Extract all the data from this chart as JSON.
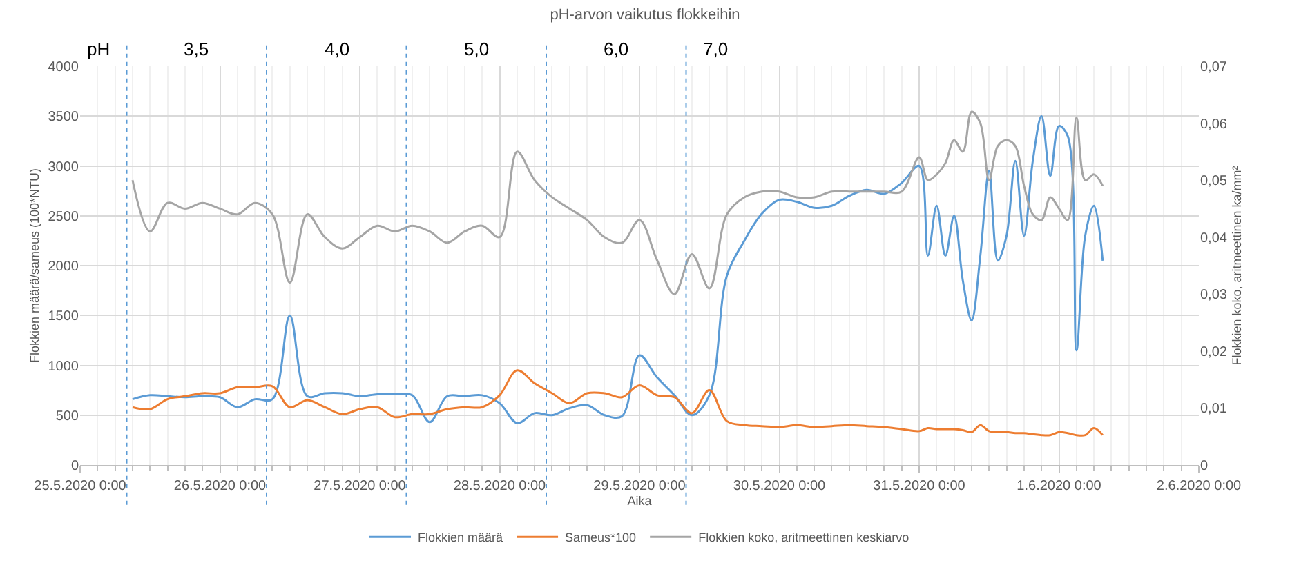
{
  "chart_data": {
    "type": "line",
    "title": "pH-arvon vaikutus flokkeihin",
    "xlabel": "Aika",
    "ylabel": "Flokkien määrä/sameus (100*NTU)",
    "y2label": "Flokkien koko, aritmeettinen ka/mm²",
    "x": [
      "2020-05-25T09:00",
      "2020-05-25T12:00",
      "2020-05-25T15:00",
      "2020-05-25T18:00",
      "2020-05-25T21:00",
      "2020-05-26T00:00",
      "2020-05-26T03:00",
      "2020-05-26T06:00",
      "2020-05-26T09:00",
      "2020-05-26T12:00",
      "2020-05-26T15:00",
      "2020-05-26T18:00",
      "2020-05-26T21:00",
      "2020-05-27T00:00",
      "2020-05-27T03:00",
      "2020-05-27T06:00",
      "2020-05-27T09:00",
      "2020-05-27T12:00",
      "2020-05-27T15:00",
      "2020-05-27T18:00",
      "2020-05-27T21:00",
      "2020-05-28T00:00",
      "2020-05-28T03:00",
      "2020-05-28T06:00",
      "2020-05-28T09:00",
      "2020-05-28T12:00",
      "2020-05-28T15:00",
      "2020-05-28T18:00",
      "2020-05-28T21:00",
      "2020-05-29T00:00",
      "2020-05-29T03:00",
      "2020-05-29T06:00",
      "2020-05-29T09:00",
      "2020-05-29T12:00",
      "2020-05-29T15:00",
      "2020-05-29T18:00",
      "2020-05-29T21:00",
      "2020-05-30T00:00",
      "2020-05-30T03:00",
      "2020-05-30T06:00",
      "2020-05-30T09:00",
      "2020-05-30T12:00",
      "2020-05-30T15:00",
      "2020-05-30T18:00",
      "2020-05-30T21:00",
      "2020-05-31T00:00",
      "2020-05-31T01:30",
      "2020-05-31T03:00",
      "2020-05-31T04:30",
      "2020-05-31T06:00",
      "2020-05-31T07:30",
      "2020-05-31T09:00",
      "2020-05-31T10:30",
      "2020-05-31T12:00",
      "2020-05-31T13:30",
      "2020-05-31T15:00",
      "2020-05-31T16:30",
      "2020-05-31T18:00",
      "2020-05-31T19:30",
      "2020-05-31T21:00",
      "2020-05-31T22:30",
      "2020-06-01T00:00",
      "2020-06-01T01:30",
      "2020-06-01T03:00",
      "2020-06-01T04:30",
      "2020-06-01T06:00",
      "2020-06-01T07:30"
    ],
    "series": [
      {
        "name": "Flokkien määrä",
        "color": "#5b9bd5",
        "values": [
          660,
          700,
          690,
          680,
          690,
          680,
          580,
          660,
          660,
          1500,
          690,
          720,
          720,
          690,
          710,
          710,
          700,
          430,
          690,
          690,
          700,
          620,
          420,
          520,
          500,
          570,
          600,
          500,
          490,
          1100,
          880,
          700,
          500,
          700,
          1900,
          2250,
          2520,
          2660,
          2640,
          2580,
          2600,
          2700,
          2760,
          2720,
          2830,
          3000,
          2100,
          2600,
          2100,
          2500,
          1850,
          1450,
          2100,
          2950,
          2050,
          2300,
          3050,
          2300,
          3050,
          3500,
          2900,
          3400,
          3300,
          1150,
          2300,
          2600,
          2050
        ]
      },
      {
        "name": "Sameus*100",
        "color": "#ed7d31",
        "values": [
          580,
          560,
          660,
          690,
          720,
          720,
          780,
          780,
          790,
          580,
          650,
          580,
          510,
          560,
          580,
          480,
          510,
          510,
          560,
          580,
          580,
          700,
          950,
          820,
          720,
          620,
          720,
          720,
          680,
          800,
          700,
          680,
          520,
          750,
          440,
          400,
          390,
          380,
          400,
          380,
          390,
          400,
          390,
          380,
          360,
          340,
          370,
          360,
          360,
          360,
          350,
          330,
          400,
          340,
          330,
          330,
          320,
          320,
          310,
          300,
          300,
          330,
          320,
          300,
          300,
          370,
          300
        ]
      },
      {
        "name": "Flokkien koko, aritmeettinen keskiarvo",
        "color": "#a5a5a5",
        "axis": "y2",
        "values": [
          0.05,
          0.041,
          0.046,
          0.045,
          0.046,
          0.045,
          0.044,
          0.046,
          0.044,
          0.032,
          0.044,
          0.04,
          0.038,
          0.04,
          0.042,
          0.041,
          0.042,
          0.041,
          0.039,
          0.041,
          0.042,
          0.04,
          0.055,
          0.05,
          0.047,
          0.045,
          0.043,
          0.04,
          0.039,
          0.043,
          0.036,
          0.03,
          0.037,
          0.031,
          0.044,
          0.047,
          0.048,
          0.048,
          0.047,
          0.047,
          0.048,
          0.048,
          0.048,
          0.048,
          0.048,
          0.054,
          0.05,
          0.051,
          0.053,
          0.057,
          0.055,
          0.062,
          0.06,
          0.05,
          0.056,
          0.057,
          0.056,
          0.049,
          0.044,
          0.043,
          0.047,
          0.045,
          0.043,
          0.061,
          0.05,
          0.051,
          0.049
        ]
      }
    ],
    "xlim": [
      "2020-05-25T00:00",
      "2020-06-02T00:00"
    ],
    "xticks": [
      {
        "value": "2020-05-25T00:00",
        "label": "25.5.2020 0:00"
      },
      {
        "value": "2020-05-26T00:00",
        "label": "26.5.2020 0:00"
      },
      {
        "value": "2020-05-27T00:00",
        "label": "27.5.2020 0:00"
      },
      {
        "value": "2020-05-28T00:00",
        "label": "28.5.2020 0:00"
      },
      {
        "value": "2020-05-29T00:00",
        "label": "29.5.2020 0:00"
      },
      {
        "value": "2020-05-30T00:00",
        "label": "30.5.2020 0:00"
      },
      {
        "value": "2020-05-31T00:00",
        "label": "31.5.2020 0:00"
      },
      {
        "value": "2020-06-01T00:00",
        "label": "1.6.2020 0:00"
      },
      {
        "value": "2020-06-02T00:00",
        "label": "2.6.2020 0:00"
      }
    ],
    "ylim": [
      0,
      4000
    ],
    "yticks": [
      0,
      500,
      1000,
      1500,
      2000,
      2500,
      3000,
      3500,
      4000
    ],
    "y2lim": [
      0,
      0.07
    ],
    "y2ticks": [
      0,
      {
        "value": 0.01,
        "label": "0,01"
      },
      {
        "value": 0.02,
        "label": "0,02"
      },
      {
        "value": 0.03,
        "label": "0,03"
      },
      {
        "value": 0.04,
        "label": "0,04"
      },
      {
        "value": 0.05,
        "label": "0,05"
      },
      {
        "value": 0.06,
        "label": "0,06"
      },
      {
        "value": 0.07,
        "label": "0,07"
      }
    ],
    "ref_lines": [
      {
        "axis": "x",
        "value": "2020-05-25T08:00",
        "color": "#5b9bd5",
        "line_style": "dotted"
      },
      {
        "axis": "x",
        "value": "2020-05-26T08:00",
        "color": "#5b9bd5",
        "line_style": "dotted"
      },
      {
        "axis": "x",
        "value": "2020-05-27T08:00",
        "color": "#5b9bd5",
        "line_style": "dotted"
      },
      {
        "axis": "x",
        "value": "2020-05-28T08:00",
        "color": "#5b9bd5",
        "line_style": "dotted"
      },
      {
        "axis": "x",
        "value": "2020-05-29T08:00",
        "color": "#5b9bd5",
        "line_style": "dotted"
      }
    ],
    "annotations": [
      "pH",
      "3,5",
      "4,0",
      "5,0",
      "6,0",
      "7,0"
    ],
    "grid": true,
    "legend": "bottom",
    "marker": "none",
    "line_style": "solid"
  }
}
